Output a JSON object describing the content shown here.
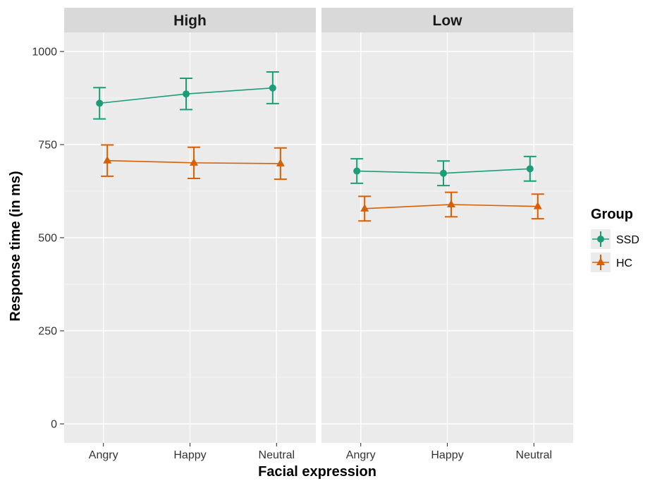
{
  "chart_data": {
    "type": "line",
    "facets": [
      "High",
      "Low"
    ],
    "categories": [
      "Angry",
      "Happy",
      "Neutral"
    ],
    "xlabel": "Facial expression",
    "ylabel": "Response time (in ms)",
    "ylim": [
      0,
      1050
    ],
    "yticks": [
      0,
      250,
      500,
      750,
      1000
    ],
    "grid": true,
    "legend": {
      "title": "Group",
      "position": "right"
    },
    "series": [
      {
        "name": "SSD",
        "color": "#1b9e77",
        "marker": "circle",
        "panels": {
          "High": {
            "values": [
              861,
              886,
              902
            ],
            "lower": [
              819,
              844,
              860
            ],
            "upper": [
              903,
              928,
              945
            ]
          },
          "Low": {
            "values": [
              679,
              673,
              685
            ],
            "lower": [
              646,
              640,
              652
            ],
            "upper": [
              712,
              706,
              718
            ]
          }
        }
      },
      {
        "name": "HC",
        "color": "#d95f02",
        "marker": "triangle",
        "panels": {
          "High": {
            "values": [
              707,
              701,
              699
            ],
            "lower": [
              665,
              659,
              657
            ],
            "upper": [
              749,
              743,
              741
            ]
          },
          "Low": {
            "values": [
              578,
              589,
              584
            ],
            "lower": [
              545,
              556,
              551
            ],
            "upper": [
              611,
              622,
              617
            ]
          }
        }
      }
    ]
  }
}
